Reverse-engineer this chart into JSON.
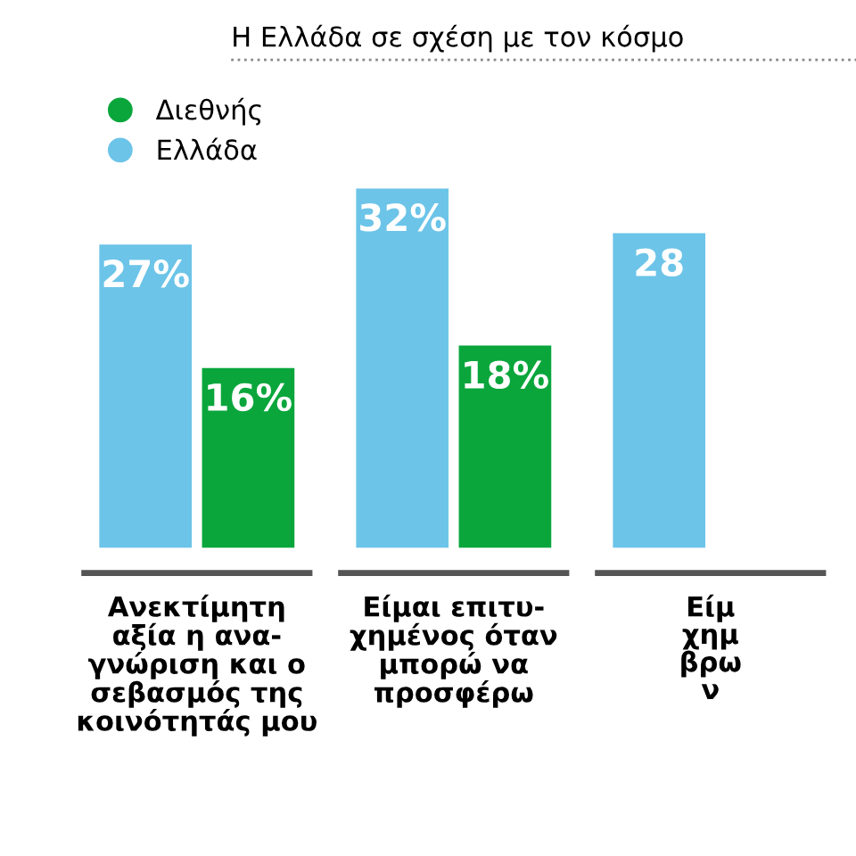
{
  "chart_data": {
    "type": "bar",
    "title": "Η Ελλάδα σε σχέση με τον κόσμο",
    "categories": [
      "Ανεκτίμητη\nαξία η ανα-\nγνώριση και ο\nσεβασμός της\nκοινότητάς μου",
      "Είμαι επιτυ-\nχημένος όταν\nμπορώ να\nπροσφέρω",
      "Είμ\nχημ\nβρω\nν"
    ],
    "series": [
      {
        "name": "Ελλάδα",
        "color": "#6cc4e8",
        "values": [
          27,
          32,
          28
        ],
        "value_labels": [
          "27%",
          "32%",
          "28"
        ]
      },
      {
        "name": "Διεθνής",
        "color": "#0aa63c",
        "values": [
          16,
          18,
          null
        ],
        "value_labels": [
          "16%",
          "18%",
          null
        ]
      }
    ],
    "legend": "top left"
  }
}
